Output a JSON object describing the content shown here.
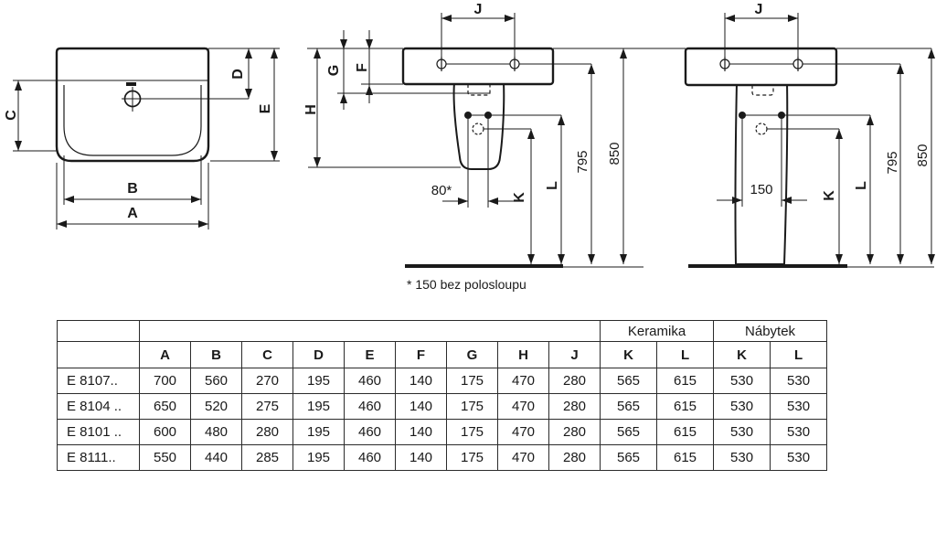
{
  "figures": {
    "front_view": {
      "labels": {
        "A": "A",
        "B": "B",
        "C": "C",
        "D": "D",
        "E": "E"
      }
    },
    "half_pedestal_view": {
      "labels": {
        "J": "J",
        "G": "G",
        "F": "F",
        "H": "H",
        "K": "K",
        "L": "L",
        "h795": "795",
        "h850": "850",
        "d80": "80*"
      }
    },
    "pedestal_view": {
      "labels": {
        "J": "J",
        "K": "K",
        "L": "L",
        "h795": "795",
        "h850": "850",
        "d150": "150"
      }
    },
    "footnote": "* 150 bez polosloupu"
  },
  "table": {
    "group_cols": {
      "keramika": "Keramika",
      "nabytek": "Nábytek"
    },
    "columns": [
      "A",
      "B",
      "C",
      "D",
      "E",
      "F",
      "G",
      "H",
      "J",
      "K",
      "L",
      "K",
      "L"
    ],
    "rows": [
      {
        "model": "E 8107..",
        "values": [
          "700",
          "560",
          "270",
          "195",
          "460",
          "140",
          "175",
          "470",
          "280",
          "565",
          "615",
          "530",
          "530"
        ]
      },
      {
        "model": "E 8104 ..",
        "values": [
          "650",
          "520",
          "275",
          "195",
          "460",
          "140",
          "175",
          "470",
          "280",
          "565",
          "615",
          "530",
          "530"
        ]
      },
      {
        "model": "E 8101 ..",
        "values": [
          "600",
          "480",
          "280",
          "195",
          "460",
          "140",
          "175",
          "470",
          "280",
          "565",
          "615",
          "530",
          "530"
        ]
      },
      {
        "model": "E 8111..",
        "values": [
          "550",
          "440",
          "285",
          "195",
          "460",
          "140",
          "175",
          "470",
          "280",
          "565",
          "615",
          "530",
          "530"
        ]
      }
    ]
  }
}
